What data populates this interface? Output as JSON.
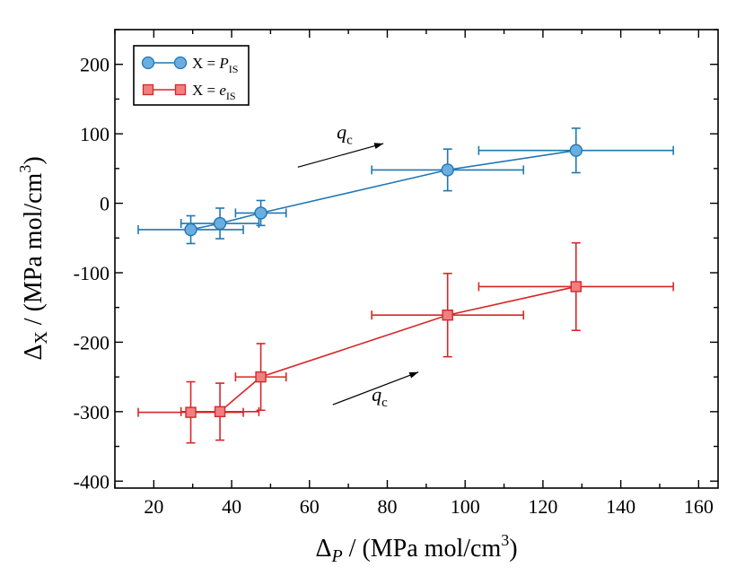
{
  "chart_data": {
    "type": "scatter",
    "title": "",
    "xlabel": {
      "base": "Δ",
      "sub": "P",
      "rest": " / (MPa mol/cm",
      "sup": "3",
      "close": ")"
    },
    "ylabel": {
      "base": "Δ",
      "sub": "X",
      "rest": " / (MPa mol/cm",
      "sup": "3",
      "close": ")"
    },
    "xlim": [
      10,
      165
    ],
    "ylim": [
      -410,
      250
    ],
    "xticks": [
      20,
      40,
      60,
      80,
      100,
      120,
      140,
      160
    ],
    "yticks": [
      -400,
      -300,
      -200,
      -100,
      0,
      100,
      200
    ],
    "xtick_labels": [
      "20",
      "40",
      "60",
      "80",
      "100",
      "120",
      "140",
      "160"
    ],
    "ytick_labels": [
      "-400",
      "-300",
      "-200",
      "-100",
      "0",
      "100",
      "200"
    ],
    "legend_position": "top-left",
    "series": [
      {
        "name": "X = P_IS",
        "legend": {
          "prefix": "X = ",
          "main": "P",
          "sub": "IS"
        },
        "marker": "circle",
        "color": "#1f77b4",
        "fill": "#6aaee0",
        "x": [
          29.5,
          37,
          47.5,
          95.5,
          128.5
        ],
        "y": [
          -38,
          -29,
          -14,
          48,
          76
        ],
        "xerr": [
          13.5,
          10,
          6.5,
          19.5,
          25
        ],
        "yerr": [
          20,
          22,
          18,
          30,
          32
        ]
      },
      {
        "name": "X = e_IS",
        "legend": {
          "prefix": "X = ",
          "main": "e",
          "sub": "IS"
        },
        "marker": "square",
        "color": "#d62728",
        "fill": "#f08080",
        "x": [
          29.5,
          37,
          47.5,
          95.5,
          128.5
        ],
        "y": [
          -301,
          -300,
          -250,
          -161,
          -120
        ],
        "xerr": [
          13.5,
          10,
          6.5,
          19.5,
          25
        ],
        "yerr": [
          44,
          41,
          48,
          60,
          63
        ]
      }
    ],
    "annotations": [
      {
        "text": "q",
        "sub": "c",
        "label_at": [
          67,
          93
        ],
        "arrow_from": [
          57,
          52
        ],
        "arrow_to": [
          79,
          86
        ]
      },
      {
        "text": "q",
        "sub": "c",
        "label_at": [
          76,
          -285
        ],
        "arrow_from": [
          66,
          -290
        ],
        "arrow_to": [
          88,
          -243
        ]
      }
    ]
  }
}
